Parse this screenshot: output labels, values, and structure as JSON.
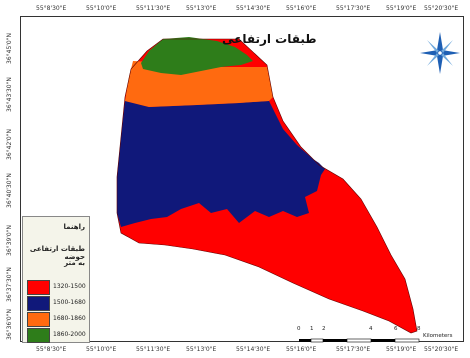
{
  "map_title": "طبقات ارتفاعی",
  "top_ticks": [
    "55°8'30\"E",
    "55°10'0\"E",
    "55°11'30\"E",
    "55°13'0\"E",
    "55°14'30\"E",
    "55°16'0\"E",
    "55°17'30\"E",
    "55°19'0\"E",
    "55°20'30\"E"
  ],
  "bottom_ticks": [
    "55°8'30\"E",
    "55°10'0\"E",
    "55°11'30\"E",
    "55°13'0\"E",
    "55°14'30\"E",
    "55°16'0\"E",
    "55°17'30\"E",
    "55°19'0\"E",
    "55°20'30\"E"
  ],
  "left_ticks": [
    "36°45'0\"N",
    "36°43'30\"N",
    "36°42'0\"N",
    "36°40'30\"N",
    "36°39'0\"N",
    "36°37'30\"N",
    "36°36'0\"N"
  ],
  "legend": {
    "heading": "راهنما",
    "subtitle": "طبقات ارتفاعی حوضه",
    "unit": "به متر",
    "items": [
      {
        "label": "1320-1500",
        "color": "#ff0000"
      },
      {
        "label": "1500-1680",
        "color": "#10187a"
      },
      {
        "label": "1680-1860",
        "color": "#ff6a10"
      },
      {
        "label": "1860-2000",
        "color": "#2e7d1a"
      }
    ]
  },
  "scale": {
    "ticks": [
      "0",
      "1",
      "2",
      "4",
      "6",
      "8"
    ],
    "unit": "Kilometers"
  },
  "north_arrow": "compass-rose-icon"
}
